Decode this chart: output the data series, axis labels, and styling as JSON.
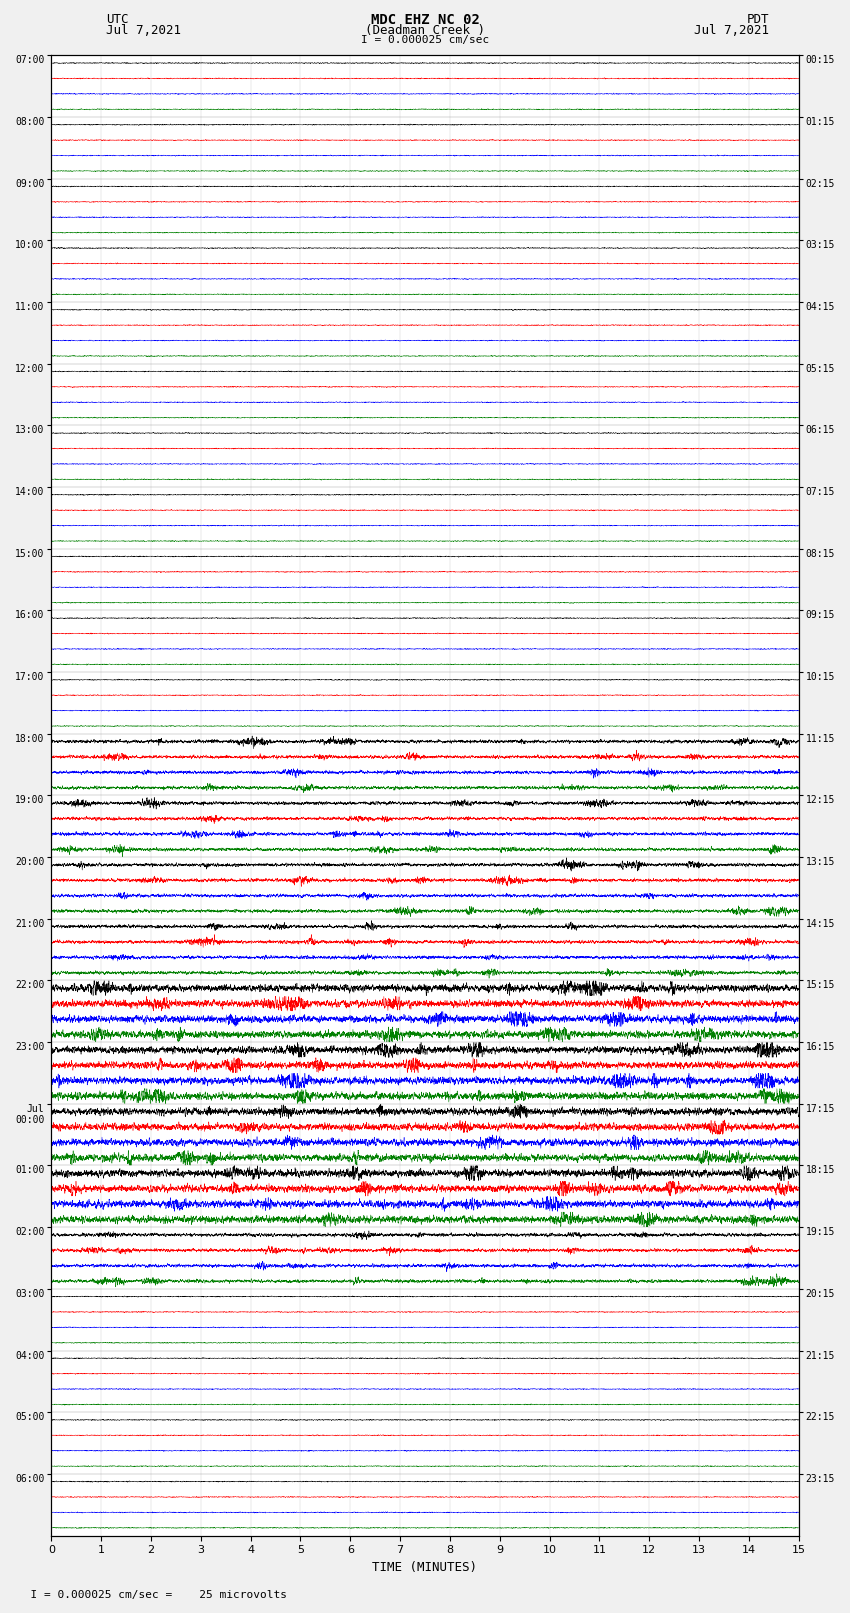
{
  "title_line1": "MDC EHZ NC 02",
  "title_line2": "(Deadman Creek )",
  "title_line3": "I = 0.000025 cm/sec",
  "left_label_top": "UTC",
  "left_label_date": "Jul 7,2021",
  "right_label_top": "PDT",
  "right_label_date": "Jul 7,2021",
  "xlabel": "TIME (MINUTES)",
  "bottom_note": "  I = 0.000025 cm/sec =    25 microvolts",
  "x_ticks": [
    0,
    1,
    2,
    3,
    4,
    5,
    6,
    7,
    8,
    9,
    10,
    11,
    12,
    13,
    14,
    15
  ],
  "utc_times": [
    "07:00",
    "08:00",
    "09:00",
    "10:00",
    "11:00",
    "12:00",
    "13:00",
    "14:00",
    "15:00",
    "16:00",
    "17:00",
    "18:00",
    "19:00",
    "20:00",
    "21:00",
    "22:00",
    "23:00",
    "Jul\n00:00",
    "01:00",
    "02:00",
    "03:00",
    "04:00",
    "05:00",
    "06:00"
  ],
  "pdt_times": [
    "00:15",
    "01:15",
    "02:15",
    "03:15",
    "04:15",
    "05:15",
    "06:15",
    "07:15",
    "08:15",
    "09:15",
    "10:15",
    "11:15",
    "12:15",
    "13:15",
    "14:15",
    "15:15",
    "16:15",
    "17:15",
    "18:15",
    "19:15",
    "20:15",
    "21:15",
    "22:15",
    "23:15"
  ],
  "trace_colors": [
    "black",
    "red",
    "blue",
    "green"
  ],
  "n_hours": 24,
  "traces_per_hour": 4,
  "amp_quiet": 0.03,
  "amp_moderate": 0.1,
  "amp_active": 0.22,
  "amp_very_active": 0.3,
  "quiet_hours": [
    0,
    1,
    2,
    3,
    4,
    5,
    6,
    7,
    8,
    9,
    10,
    20,
    21,
    22,
    23
  ],
  "moderate_hours": [
    11,
    12,
    13,
    14,
    19
  ],
  "active_hours": [
    15,
    16,
    17,
    18
  ],
  "very_active_hours": [],
  "figsize": [
    8.5,
    16.13
  ],
  "dpi": 100,
  "bg_color": "#f0f0f0",
  "plot_bg": "white",
  "spine_color": "black"
}
